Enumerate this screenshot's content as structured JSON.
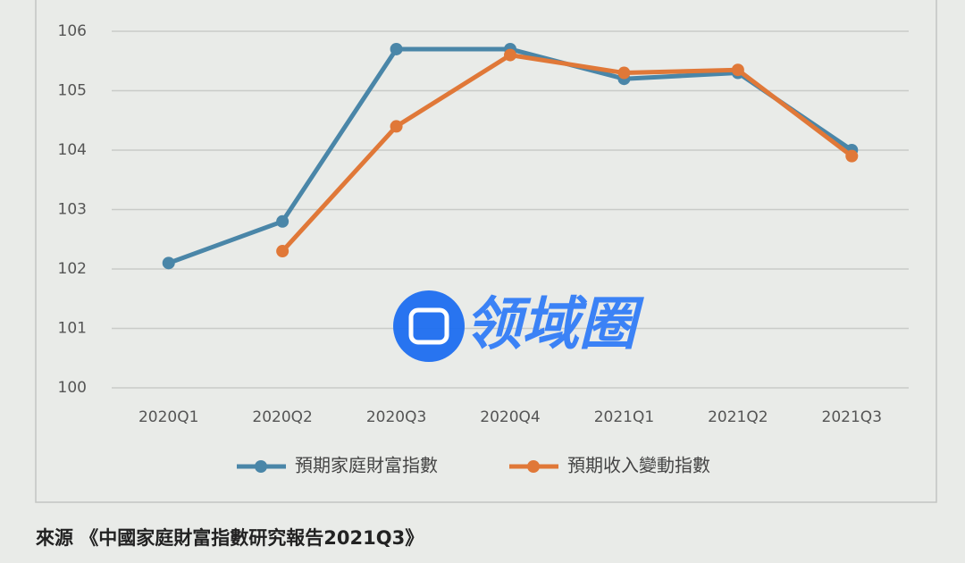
{
  "chart_data": {
    "type": "line",
    "categories": [
      "2020Q1",
      "2020Q2",
      "2020Q3",
      "2020Q4",
      "2021Q1",
      "2021Q2",
      "2021Q3"
    ],
    "series": [
      {
        "name": "預期家庭財富指數",
        "color": "#4a86a8",
        "values": [
          102.1,
          102.8,
          105.7,
          105.7,
          105.2,
          105.3,
          104.0
        ]
      },
      {
        "name": "預期收入變動指數",
        "color": "#e07838",
        "values": [
          null,
          102.3,
          104.4,
          105.6,
          105.3,
          105.35,
          103.9
        ]
      }
    ],
    "ylim": [
      100,
      106
    ],
    "yticks": [
      100,
      101,
      102,
      103,
      104,
      105,
      106
    ],
    "grid": true,
    "legend": "bottom",
    "watermark": "领域圈",
    "source": "來源 《中國家庭財富指數研究報告2021Q3》"
  }
}
